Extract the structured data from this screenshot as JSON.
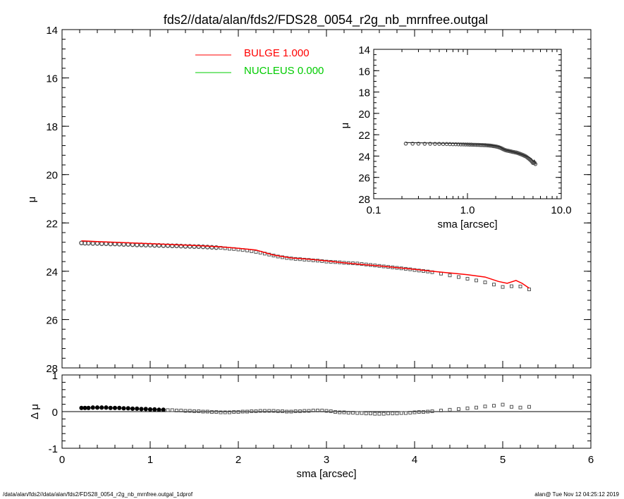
{
  "title": "fds2//data/alan/fds2/FDS28_0054_r2g_nb_mrnfree.outgal",
  "footer": {
    "left": "/data/alan/fds2//data/alan/fds2/FDS28_0054_r2g_nb_mrnfree.outgal_1dprof",
    "right": "alan@  Tue Nov 12 04:25:12 2019"
  },
  "legend": {
    "items": [
      {
        "label": "BULGE  1.000",
        "color": "#ff0000"
      },
      {
        "label": "NUCLEUS  0.000",
        "color": "#00cc00"
      }
    ]
  },
  "colors": {
    "data": "#555555",
    "bulge": "#ff0000",
    "nucleus": "#00cc00",
    "axis": "#000000"
  },
  "chart_data": [
    {
      "name": "main-profile",
      "type": "scatter",
      "xlabel": "",
      "ylabel": "μ",
      "xlim": [
        0,
        6
      ],
      "ylim": [
        28,
        14
      ],
      "yticks": [
        {
          "v": 14,
          "l": "14"
        },
        {
          "v": 16,
          "l": "16"
        },
        {
          "v": 18,
          "l": "18"
        },
        {
          "v": 20,
          "l": "20"
        },
        {
          "v": 22,
          "l": "22"
        },
        {
          "v": 24,
          "l": "24"
        },
        {
          "v": 26,
          "l": "26"
        },
        {
          "v": 28,
          "l": "28"
        }
      ],
      "series": [
        {
          "name": "data",
          "x": [
            0.22,
            0.26,
            0.3,
            0.35,
            0.4,
            0.45,
            0.5,
            0.55,
            0.6,
            0.65,
            0.7,
            0.75,
            0.8,
            0.85,
            0.9,
            0.95,
            1.0,
            1.05,
            1.1,
            1.15,
            1.2,
            1.25,
            1.3,
            1.35,
            1.4,
            1.45,
            1.5,
            1.55,
            1.6,
            1.65,
            1.7,
            1.75,
            1.8,
            1.85,
            1.9,
            1.95,
            2.0,
            2.05,
            2.1,
            2.15,
            2.2,
            2.25,
            2.3,
            2.35,
            2.4,
            2.45,
            2.5,
            2.55,
            2.6,
            2.65,
            2.7,
            2.75,
            2.8,
            2.85,
            2.9,
            2.95,
            3.0,
            3.05,
            3.1,
            3.15,
            3.2,
            3.25,
            3.3,
            3.35,
            3.4,
            3.45,
            3.5,
            3.55,
            3.6,
            3.65,
            3.7,
            3.75,
            3.8,
            3.85,
            3.9,
            3.95,
            4.0,
            4.05,
            4.1,
            4.15,
            4.2,
            4.3,
            4.4,
            4.5,
            4.6,
            4.7,
            4.8,
            4.9,
            5.0,
            5.1,
            5.2,
            5.3
          ],
          "y": [
            22.83,
            22.84,
            22.84,
            22.85,
            22.85,
            22.86,
            22.86,
            22.87,
            22.87,
            22.88,
            22.89,
            22.89,
            22.9,
            22.91,
            22.91,
            22.92,
            22.92,
            22.93,
            22.93,
            22.94,
            22.94,
            22.95,
            22.95,
            22.96,
            22.97,
            22.97,
            22.98,
            22.98,
            22.99,
            23.0,
            23.01,
            23.02,
            23.03,
            23.05,
            23.07,
            23.08,
            23.1,
            23.12,
            23.14,
            23.17,
            23.2,
            23.23,
            23.27,
            23.31,
            23.35,
            23.39,
            23.42,
            23.45,
            23.47,
            23.49,
            23.5,
            23.52,
            23.53,
            23.55,
            23.56,
            23.58,
            23.6,
            23.61,
            23.62,
            23.63,
            23.65,
            23.66,
            23.67,
            23.68,
            23.7,
            23.72,
            23.74,
            23.76,
            23.78,
            23.8,
            23.82,
            23.84,
            23.86,
            23.88,
            23.9,
            23.92,
            23.95,
            23.97,
            23.99,
            24.01,
            24.04,
            24.1,
            24.17,
            24.24,
            24.31,
            24.38,
            24.46,
            24.55,
            24.65,
            24.62,
            24.63,
            24.75
          ]
        },
        {
          "name": "BULGE",
          "x": [
            0.22,
            0.4,
            0.6,
            0.8,
            1.0,
            1.2,
            1.4,
            1.6,
            1.8,
            2.0,
            2.2,
            2.4,
            2.6,
            2.8,
            3.0,
            3.2,
            3.4,
            3.6,
            3.8,
            4.0,
            4.2,
            4.4,
            4.6,
            4.8,
            4.95,
            5.05,
            5.15,
            5.22,
            5.3
          ],
          "y": [
            22.74,
            22.77,
            22.8,
            22.83,
            22.86,
            22.89,
            22.92,
            22.95,
            22.99,
            23.05,
            23.12,
            23.33,
            23.45,
            23.5,
            23.57,
            23.65,
            23.72,
            23.78,
            23.85,
            23.92,
            24.0,
            24.07,
            24.14,
            24.24,
            24.42,
            24.5,
            24.38,
            24.5,
            24.7
          ]
        }
      ]
    },
    {
      "name": "inset-profile",
      "type": "scatter",
      "xlabel": "sma [arcsec]",
      "ylabel": "μ",
      "xscale": "log",
      "xlim": [
        0.1,
        10.0
      ],
      "ylim": [
        28,
        14
      ],
      "xticks": [
        {
          "v": 0.1,
          "l": "0.1"
        },
        {
          "v": 1.0,
          "l": "1.0"
        },
        {
          "v": 10.0,
          "l": "10.0"
        }
      ],
      "yticks": [
        {
          "v": 14,
          "l": "14"
        },
        {
          "v": 16,
          "l": "16"
        },
        {
          "v": 18,
          "l": "18"
        },
        {
          "v": 20,
          "l": "20"
        },
        {
          "v": 22,
          "l": "22"
        },
        {
          "v": 24,
          "l": "24"
        },
        {
          "v": 26,
          "l": "26"
        },
        {
          "v": 28,
          "l": "28"
        }
      ]
    },
    {
      "name": "residuals",
      "type": "scatter",
      "xlabel": "sma [arcsec]",
      "ylabel": "Δ μ",
      "xlim": [
        0,
        6
      ],
      "ylim": [
        -1,
        1
      ],
      "xticks": [
        {
          "v": 0,
          "l": "0"
        },
        {
          "v": 1,
          "l": "1"
        },
        {
          "v": 2,
          "l": "2"
        },
        {
          "v": 3,
          "l": "3"
        },
        {
          "v": 4,
          "l": "4"
        },
        {
          "v": 5,
          "l": "5"
        },
        {
          "v": 6,
          "l": "6"
        }
      ],
      "yticks": [
        {
          "v": 1,
          "l": "1"
        },
        {
          "v": 0,
          "l": "0"
        },
        {
          "v": -1,
          "l": "-1"
        }
      ],
      "zero_line": true,
      "series": [
        {
          "name": "residual",
          "x": [
            0.22,
            0.26,
            0.3,
            0.35,
            0.4,
            0.45,
            0.5,
            0.55,
            0.6,
            0.65,
            0.7,
            0.75,
            0.8,
            0.85,
            0.9,
            0.95,
            1.0,
            1.05,
            1.1,
            1.15,
            1.2,
            1.25,
            1.3,
            1.35,
            1.4,
            1.45,
            1.5,
            1.55,
            1.6,
            1.65,
            1.7,
            1.75,
            1.8,
            1.85,
            1.9,
            1.95,
            2.0,
            2.05,
            2.1,
            2.15,
            2.2,
            2.25,
            2.3,
            2.35,
            2.4,
            2.45,
            2.5,
            2.55,
            2.6,
            2.65,
            2.7,
            2.75,
            2.8,
            2.85,
            2.9,
            2.95,
            3.0,
            3.05,
            3.1,
            3.15,
            3.2,
            3.25,
            3.3,
            3.35,
            3.4,
            3.45,
            3.5,
            3.55,
            3.6,
            3.65,
            3.7,
            3.75,
            3.8,
            3.85,
            3.9,
            3.95,
            4.0,
            4.05,
            4.1,
            4.15,
            4.2,
            4.3,
            4.4,
            4.5,
            4.6,
            4.7,
            4.8,
            4.9,
            5.0,
            5.1,
            5.2,
            5.3
          ],
          "y": [
            0.1,
            0.1,
            0.1,
            0.11,
            0.11,
            0.11,
            0.11,
            0.1,
            0.1,
            0.1,
            0.09,
            0.09,
            0.08,
            0.08,
            0.07,
            0.07,
            0.06,
            0.06,
            0.05,
            0.05,
            0.04,
            0.04,
            0.03,
            0.03,
            0.02,
            0.02,
            0.01,
            0.01,
            0.0,
            0.0,
            -0.01,
            -0.01,
            -0.02,
            -0.02,
            -0.02,
            -0.01,
            -0.01,
            0.0,
            0.0,
            0.01,
            0.01,
            0.02,
            0.02,
            0.02,
            0.02,
            0.01,
            0.01,
            0.0,
            0.0,
            0.01,
            0.01,
            0.02,
            0.02,
            0.03,
            0.03,
            0.03,
            0.02,
            0.01,
            -0.01,
            -0.02,
            -0.02,
            -0.03,
            -0.03,
            -0.04,
            -0.04,
            -0.05,
            -0.05,
            -0.06,
            -0.06,
            -0.06,
            -0.05,
            -0.05,
            -0.05,
            -0.04,
            -0.04,
            -0.03,
            -0.02,
            -0.01,
            -0.01,
            0.0,
            0.01,
            0.03,
            0.05,
            0.07,
            0.09,
            0.11,
            0.14,
            0.16,
            0.19,
            0.13,
            0.11,
            0.13
          ]
        }
      ]
    }
  ]
}
